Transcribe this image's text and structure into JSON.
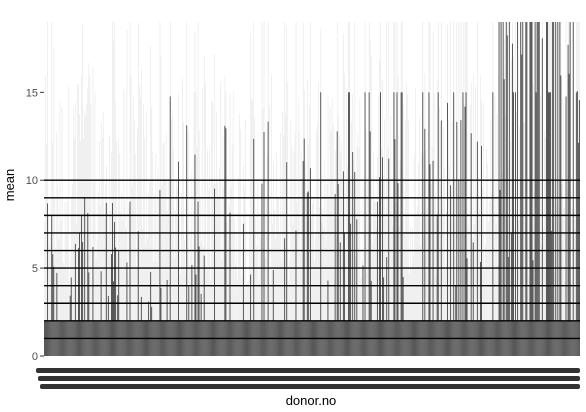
{
  "chart_data": {
    "type": "bar",
    "title": "",
    "xlabel": "donor.no",
    "ylabel": "mean",
    "ylim": [
      0,
      19
    ],
    "y_ticks": [
      0,
      5,
      10,
      15
    ],
    "grid": "none",
    "n_categories": 520,
    "bar_color": "#4d4d4d",
    "segments": [
      {
        "from": 0,
        "to": 120,
        "base": 2,
        "spike_prob": 0.3,
        "spike_min": 2.5,
        "spike_max": 9.5,
        "tall_prob": 0.03
      },
      {
        "from": 120,
        "to": 260,
        "base": 2,
        "spike_prob": 0.26,
        "spike_min": 3,
        "spike_max": 15,
        "tall_prob": 0.1
      },
      {
        "from": 260,
        "to": 330,
        "base": 2,
        "spike_prob": 0.32,
        "spike_min": 4,
        "spike_max": 15,
        "tall_prob": 0.25
      },
      {
        "from": 330,
        "to": 440,
        "base": 2,
        "spike_prob": 0.35,
        "spike_min": 4,
        "spike_max": 15,
        "tall_prob": 0.35
      },
      {
        "from": 440,
        "to": 520,
        "base": 2,
        "spike_prob": 0.45,
        "spike_min": 5,
        "spike_max": 19,
        "tall_prob": 0.5
      }
    ],
    "hlines": [
      1,
      2,
      3,
      4,
      5,
      6,
      7,
      8,
      9,
      10
    ],
    "background_lines_color": "#e6e6e6"
  }
}
